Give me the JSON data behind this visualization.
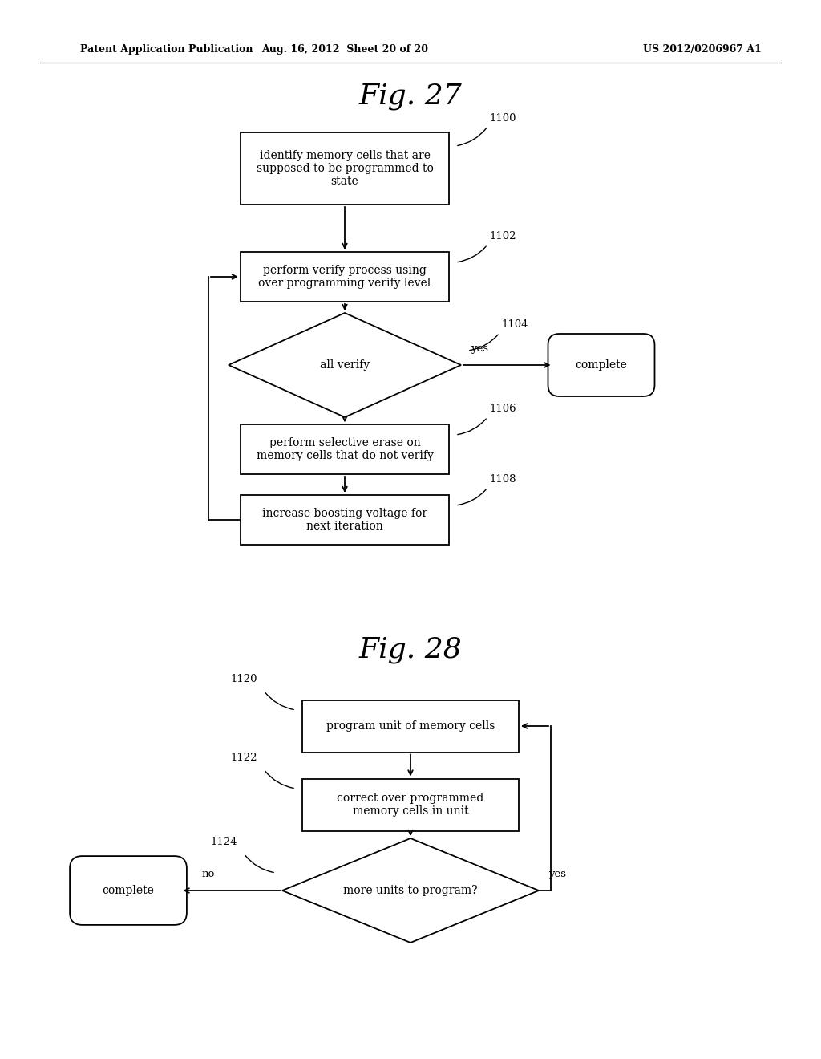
{
  "bg_color": "#ffffff",
  "header_left": "Patent Application Publication",
  "header_mid": "Aug. 16, 2012  Sheet 20 of 20",
  "header_right": "US 2012/0206967 A1",
  "fig27_title": "Fig. 27",
  "fig28_title": "Fig. 28"
}
